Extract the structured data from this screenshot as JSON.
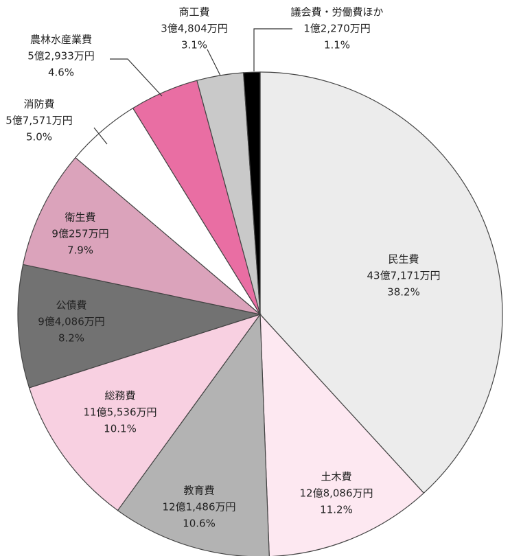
{
  "chart_data": {
    "type": "pie",
    "categories": [
      "民生費",
      "土木費",
      "教育費",
      "総務費",
      "公債費",
      "衛生費",
      "消防費",
      "農林水産業費",
      "商工費",
      "議会費・労働費ほか"
    ],
    "amount_labels": [
      "43億7,171万円",
      "12億8,086万円",
      "12億1,486万円",
      "11億5,536万円",
      "9億4,086万円",
      "9億257万円",
      "5億7,571万円",
      "5億2,933万円",
      "3億4,804万円",
      "1億2,270万円"
    ],
    "values": [
      38.2,
      11.2,
      10.6,
      10.1,
      8.2,
      7.9,
      5.0,
      4.6,
      3.1,
      1.1
    ],
    "value_labels": [
      "38.2%",
      "11.2%",
      "10.6%",
      "10.1%",
      "8.2%",
      "7.9%",
      "5.0%",
      "4.6%",
      "3.1%",
      "1.1%"
    ],
    "colors": [
      "#ececec",
      "#fde8f1",
      "#b3b3b3",
      "#f8d0e1",
      "#727272",
      "#dba3bb",
      "#ffffff",
      "#e96ea3",
      "#c9c9c9",
      "#000000"
    ]
  }
}
